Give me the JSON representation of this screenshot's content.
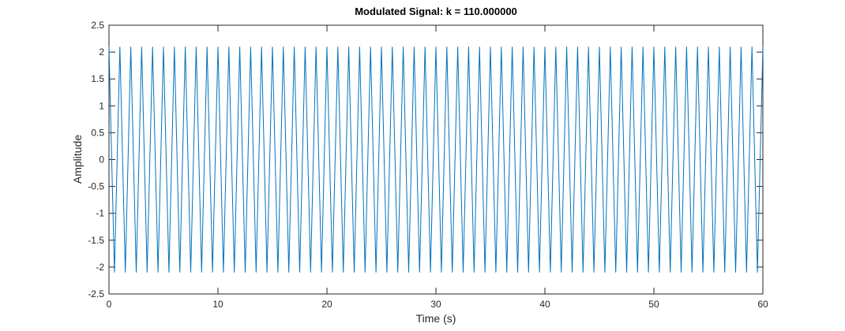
{
  "chart_data": {
    "type": "line",
    "title": "Modulated Signal: k = 110.000000",
    "xlabel": "Time (s)",
    "ylabel": "Amplitude",
    "xlim": [
      0,
      60
    ],
    "ylim": [
      -2.5,
      2.5
    ],
    "xticks": [
      0,
      10,
      20,
      30,
      40,
      50,
      60
    ],
    "yticks": [
      -2.5,
      -2,
      -1.5,
      -1,
      -0.5,
      0,
      0.5,
      1,
      1.5,
      2,
      2.5
    ],
    "grid": false,
    "x": [
      0,
      0.5,
      1,
      1.5,
      2,
      2.5,
      3,
      3.5,
      4,
      4.5,
      5,
      5.5,
      6,
      6.5,
      7,
      7.5,
      8,
      8.5,
      9,
      9.5,
      10,
      10.5,
      11,
      11.5,
      12,
      12.5,
      13,
      13.5,
      14,
      14.5,
      15,
      15.5,
      16,
      16.5,
      17,
      17.5,
      18,
      18.5,
      19,
      19.5,
      20,
      20.5,
      21,
      21.5,
      22,
      22.5,
      23,
      23.5,
      24,
      24.5,
      25,
      25.5,
      26,
      26.5,
      27,
      27.5,
      28,
      28.5,
      29,
      29.5,
      30,
      30.5,
      31,
      31.5,
      32,
      32.5,
      33,
      33.5,
      34,
      34.5,
      35,
      35.5,
      36,
      36.5,
      37,
      37.5,
      38,
      38.5,
      39,
      39.5,
      40,
      40.5,
      41,
      41.5,
      42,
      42.5,
      43,
      43.5,
      44,
      44.5,
      45,
      45.5,
      46,
      46.5,
      47,
      47.5,
      48,
      48.5,
      49,
      49.5,
      50,
      50.5,
      51,
      51.5,
      52,
      52.5,
      53,
      53.5,
      54,
      54.5,
      55,
      55.5,
      56,
      56.5,
      57,
      57.5,
      58,
      58.5,
      59,
      59.5,
      60
    ],
    "series": [
      {
        "color": "#0072bd",
        "values": [
          2.1,
          -2.1,
          2.1,
          -2.1,
          2.1,
          -2.1,
          2.1,
          -2.1,
          2.1,
          -2.1,
          2.1,
          -2.1,
          2.1,
          -2.1,
          2.1,
          -2.1,
          2.1,
          -2.1,
          2.1,
          -2.1,
          2.1,
          -2.1,
          2.1,
          -2.1,
          2.1,
          -2.1,
          2.1,
          -2.1,
          2.1,
          -2.1,
          2.1,
          -2.1,
          2.1,
          -2.1,
          2.1,
          -2.1,
          2.1,
          -2.1,
          2.1,
          -2.1,
          2.1,
          -2.1,
          2.1,
          -2.1,
          2.1,
          -2.1,
          2.1,
          -2.1,
          2.1,
          -2.1,
          2.1,
          -2.1,
          2.1,
          -2.1,
          2.1,
          -2.1,
          2.1,
          -2.1,
          2.1,
          -2.1,
          2.1,
          -2.1,
          2.1,
          -2.1,
          2.1,
          -2.1,
          2.1,
          -2.1,
          2.1,
          -2.1,
          2.1,
          -2.1,
          2.1,
          -2.1,
          2.1,
          -2.1,
          2.1,
          -2.1,
          2.1,
          -2.1,
          2.1,
          -2.1,
          2.1,
          -2.1,
          2.1,
          -2.1,
          2.1,
          -2.1,
          2.1,
          -2.1,
          2.1,
          -2.1,
          2.1,
          -2.1,
          2.1,
          -2.1,
          2.1,
          -2.1,
          2.1,
          -2.1,
          2.1,
          -2.1,
          2.1,
          -2.1,
          2.1,
          -2.1,
          2.1,
          -2.1,
          2.1,
          -2.1,
          2.1,
          -2.1,
          2.1,
          -2.1,
          2.1,
          -2.1,
          2.1,
          -2.1,
          2.1,
          -2.1,
          2.1
        ]
      }
    ]
  }
}
